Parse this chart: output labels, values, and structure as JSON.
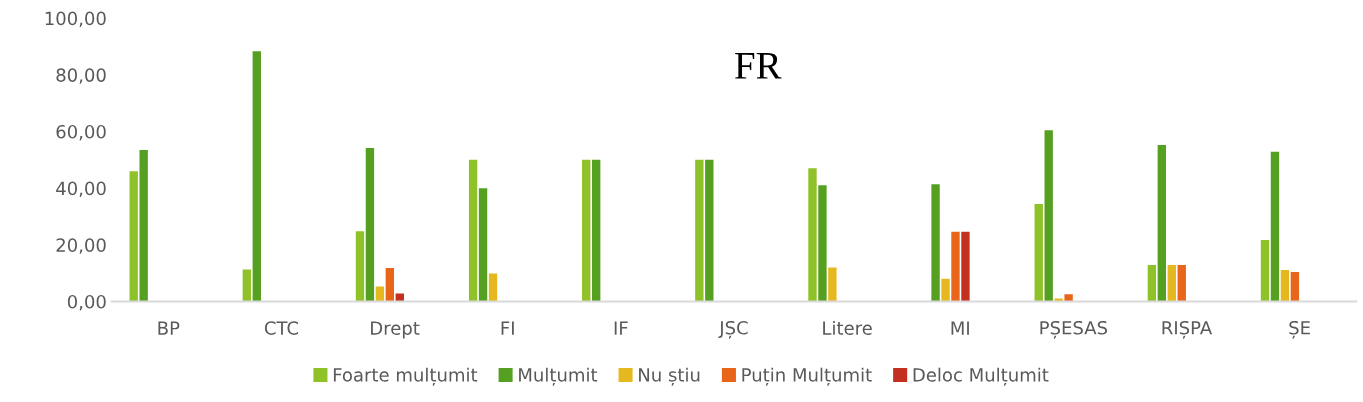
{
  "chart_data": {
    "type": "bar",
    "title": "FR",
    "categories": [
      "BP",
      "CTC",
      "Drept",
      "FI",
      "IF",
      "JȘC",
      "Litere",
      "MI",
      "PȘESAS",
      "RIȘPA",
      "ȘE"
    ],
    "series": [
      {
        "name": "Foarte mulțumit",
        "color": "#8fc128",
        "values": [
          46,
          11.3,
          24.8,
          50,
          50,
          50,
          47,
          0,
          34.4,
          12.9,
          21.7
        ]
      },
      {
        "name": "Mulțumit",
        "color": "#55a021",
        "values": [
          53.5,
          88.3,
          54.2,
          40,
          50,
          50,
          41,
          41.4,
          60.4,
          55.2,
          52.8
        ]
      },
      {
        "name": "Nu știu",
        "color": "#e6b820",
        "values": [
          0,
          0,
          5.3,
          9.9,
          0,
          0,
          12,
          8,
          1.1,
          12.9,
          11.1
        ]
      },
      {
        "name": "Puțin Mulțumit",
        "color": "#e8651a",
        "values": [
          0,
          0,
          11.8,
          0,
          0,
          0,
          0,
          24.6,
          2.6,
          12.9,
          10.4
        ]
      },
      {
        "name": "Deloc Mulțumit",
        "color": "#c43020",
        "values": [
          0,
          0,
          2.8,
          0,
          0,
          0,
          0,
          24.6,
          0,
          0,
          0
        ]
      }
    ],
    "ylim": [
      0,
      100
    ],
    "yticks": [
      {
        "value": 0,
        "label": "0,00"
      },
      {
        "value": 20,
        "label": "20,00"
      },
      {
        "value": 40,
        "label": "40,00"
      },
      {
        "value": 60,
        "label": "60,00"
      },
      {
        "value": 80,
        "label": "80,00"
      },
      {
        "value": 100,
        "label": "100,00"
      }
    ],
    "grid": false,
    "legend": "bottom"
  }
}
